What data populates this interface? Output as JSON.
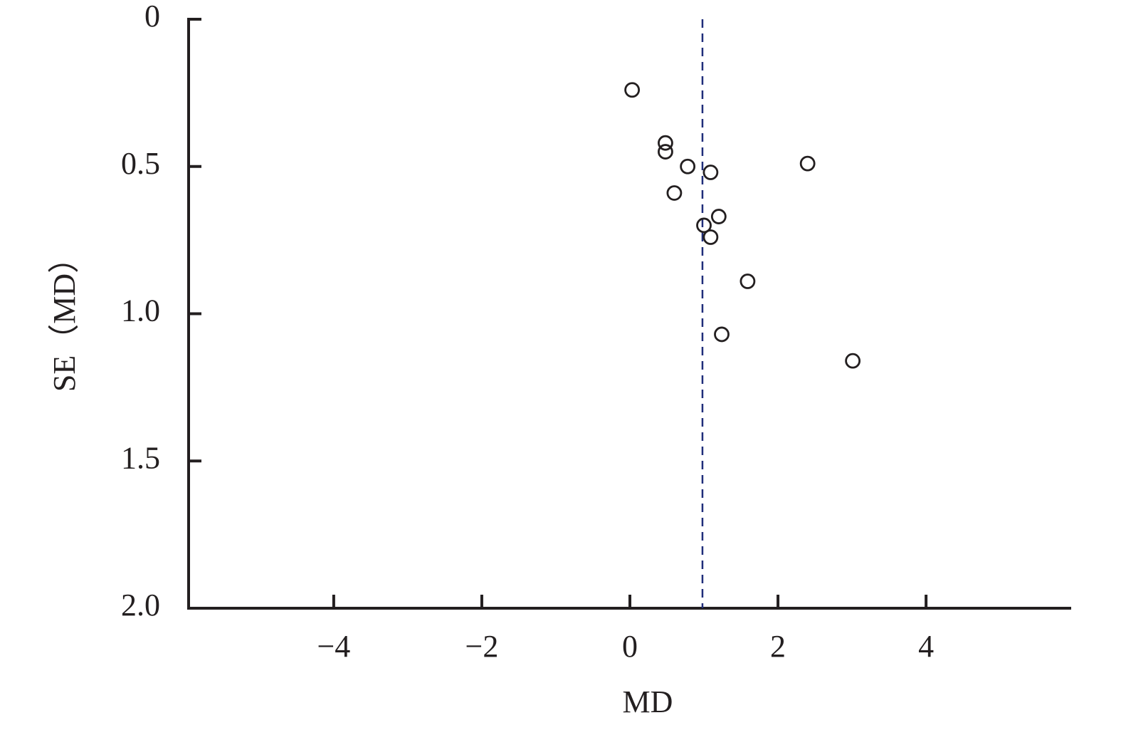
{
  "chart_data": {
    "type": "scatter",
    "x_label": "MD",
    "y_label": "SE（MD）",
    "x": [
      0.03,
      0.48,
      0.48,
      0.78,
      1.09,
      2.4,
      0.6,
      1.2,
      1.0,
      1.09,
      1.59,
      1.24,
      3.01
    ],
    "values": [
      0.24,
      0.42,
      0.45,
      0.5,
      0.52,
      0.49,
      0.59,
      0.67,
      0.7,
      0.74,
      0.89,
      1.07,
      1.16
    ],
    "color": "#231f20",
    "reference_x": 0.98,
    "reference_color": "#1f2d7a",
    "xlim": [
      -5.96,
      5.96
    ],
    "xticks": [
      {
        "value": -4,
        "label": "−4"
      },
      {
        "value": -2,
        "label": "−2"
      },
      0,
      2,
      4
    ],
    "ylim": [
      0,
      2
    ],
    "y_inverted": true,
    "yticks": [
      0,
      0.5,
      {
        "value": 1,
        "label": "1.0"
      },
      1.5,
      {
        "value": 2,
        "label": "2.0"
      }
    ]
  }
}
